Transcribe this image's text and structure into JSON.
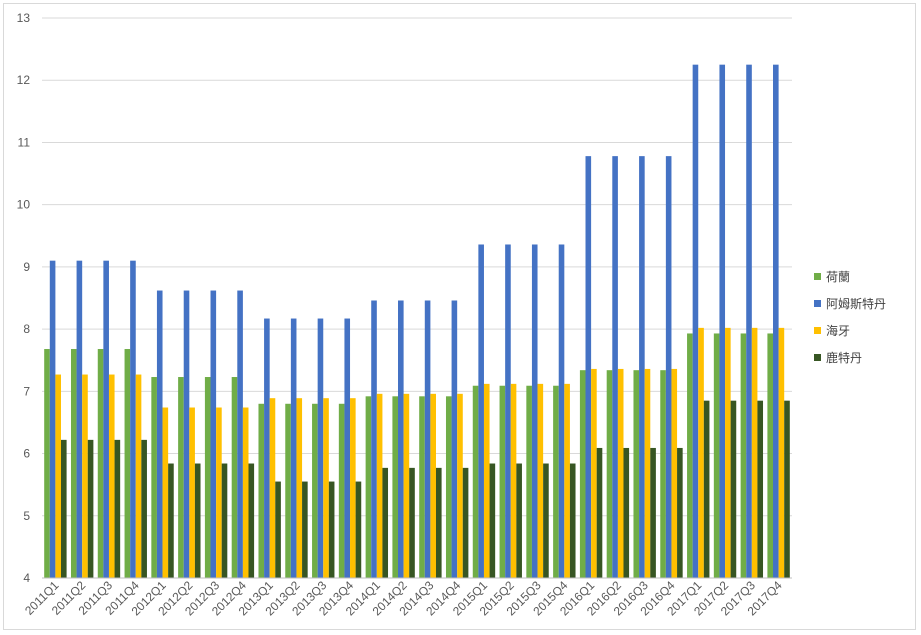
{
  "chart_data": {
    "type": "bar",
    "title": "",
    "xlabel": "",
    "ylabel": "",
    "ylim": [
      4,
      13
    ],
    "yticks": [
      4,
      5,
      6,
      7,
      8,
      9,
      10,
      11,
      12,
      13
    ],
    "grid": true,
    "legend_position": "right",
    "categories": [
      "2011Q1",
      "2011Q2",
      "2011Q3",
      "2011Q4",
      "2012Q1",
      "2012Q2",
      "2012Q3",
      "2012Q4",
      "2013Q1",
      "2013Q2",
      "2013Q3",
      "2013Q4",
      "2014Q1",
      "2014Q2",
      "2014Q3",
      "2014Q4",
      "2015Q1",
      "2015Q2",
      "2015Q3",
      "2015Q4",
      "2016Q1",
      "2016Q2",
      "2016Q3",
      "2016Q4",
      "2017Q1",
      "2017Q2",
      "2017Q3",
      "2017Q4"
    ],
    "series": [
      {
        "name": "荷蘭",
        "color": "#70ad47",
        "values": [
          7.68,
          7.68,
          7.68,
          7.68,
          7.23,
          7.23,
          7.23,
          7.23,
          6.8,
          6.8,
          6.8,
          6.8,
          6.92,
          6.92,
          6.92,
          6.92,
          7.09,
          7.09,
          7.09,
          7.09,
          7.34,
          7.34,
          7.34,
          7.34,
          7.93,
          7.93,
          7.93,
          7.93
        ]
      },
      {
        "name": "阿姆斯特丹",
        "color": "#4472c4",
        "values": [
          9.1,
          9.1,
          9.1,
          9.1,
          8.62,
          8.62,
          8.62,
          8.62,
          8.17,
          8.17,
          8.17,
          8.17,
          8.46,
          8.46,
          8.46,
          8.46,
          9.36,
          9.36,
          9.36,
          9.36,
          10.78,
          10.78,
          10.78,
          10.78,
          12.25,
          12.25,
          12.25,
          12.25
        ]
      },
      {
        "name": "海牙",
        "color": "#ffc000",
        "values": [
          7.27,
          7.27,
          7.27,
          7.27,
          6.74,
          6.74,
          6.74,
          6.74,
          6.89,
          6.89,
          6.89,
          6.89,
          6.96,
          6.96,
          6.96,
          6.96,
          7.12,
          7.12,
          7.12,
          7.12,
          7.36,
          7.36,
          7.36,
          7.36,
          8.02,
          8.02,
          8.02,
          8.02
        ]
      },
      {
        "name": "鹿特丹",
        "color": "#375623",
        "values": [
          6.22,
          6.22,
          6.22,
          6.22,
          5.84,
          5.84,
          5.84,
          5.84,
          5.55,
          5.55,
          5.55,
          5.55,
          5.77,
          5.77,
          5.77,
          5.77,
          5.84,
          5.84,
          5.84,
          5.84,
          6.09,
          6.09,
          6.09,
          6.09,
          6.85,
          6.85,
          6.85,
          6.85
        ]
      }
    ]
  }
}
